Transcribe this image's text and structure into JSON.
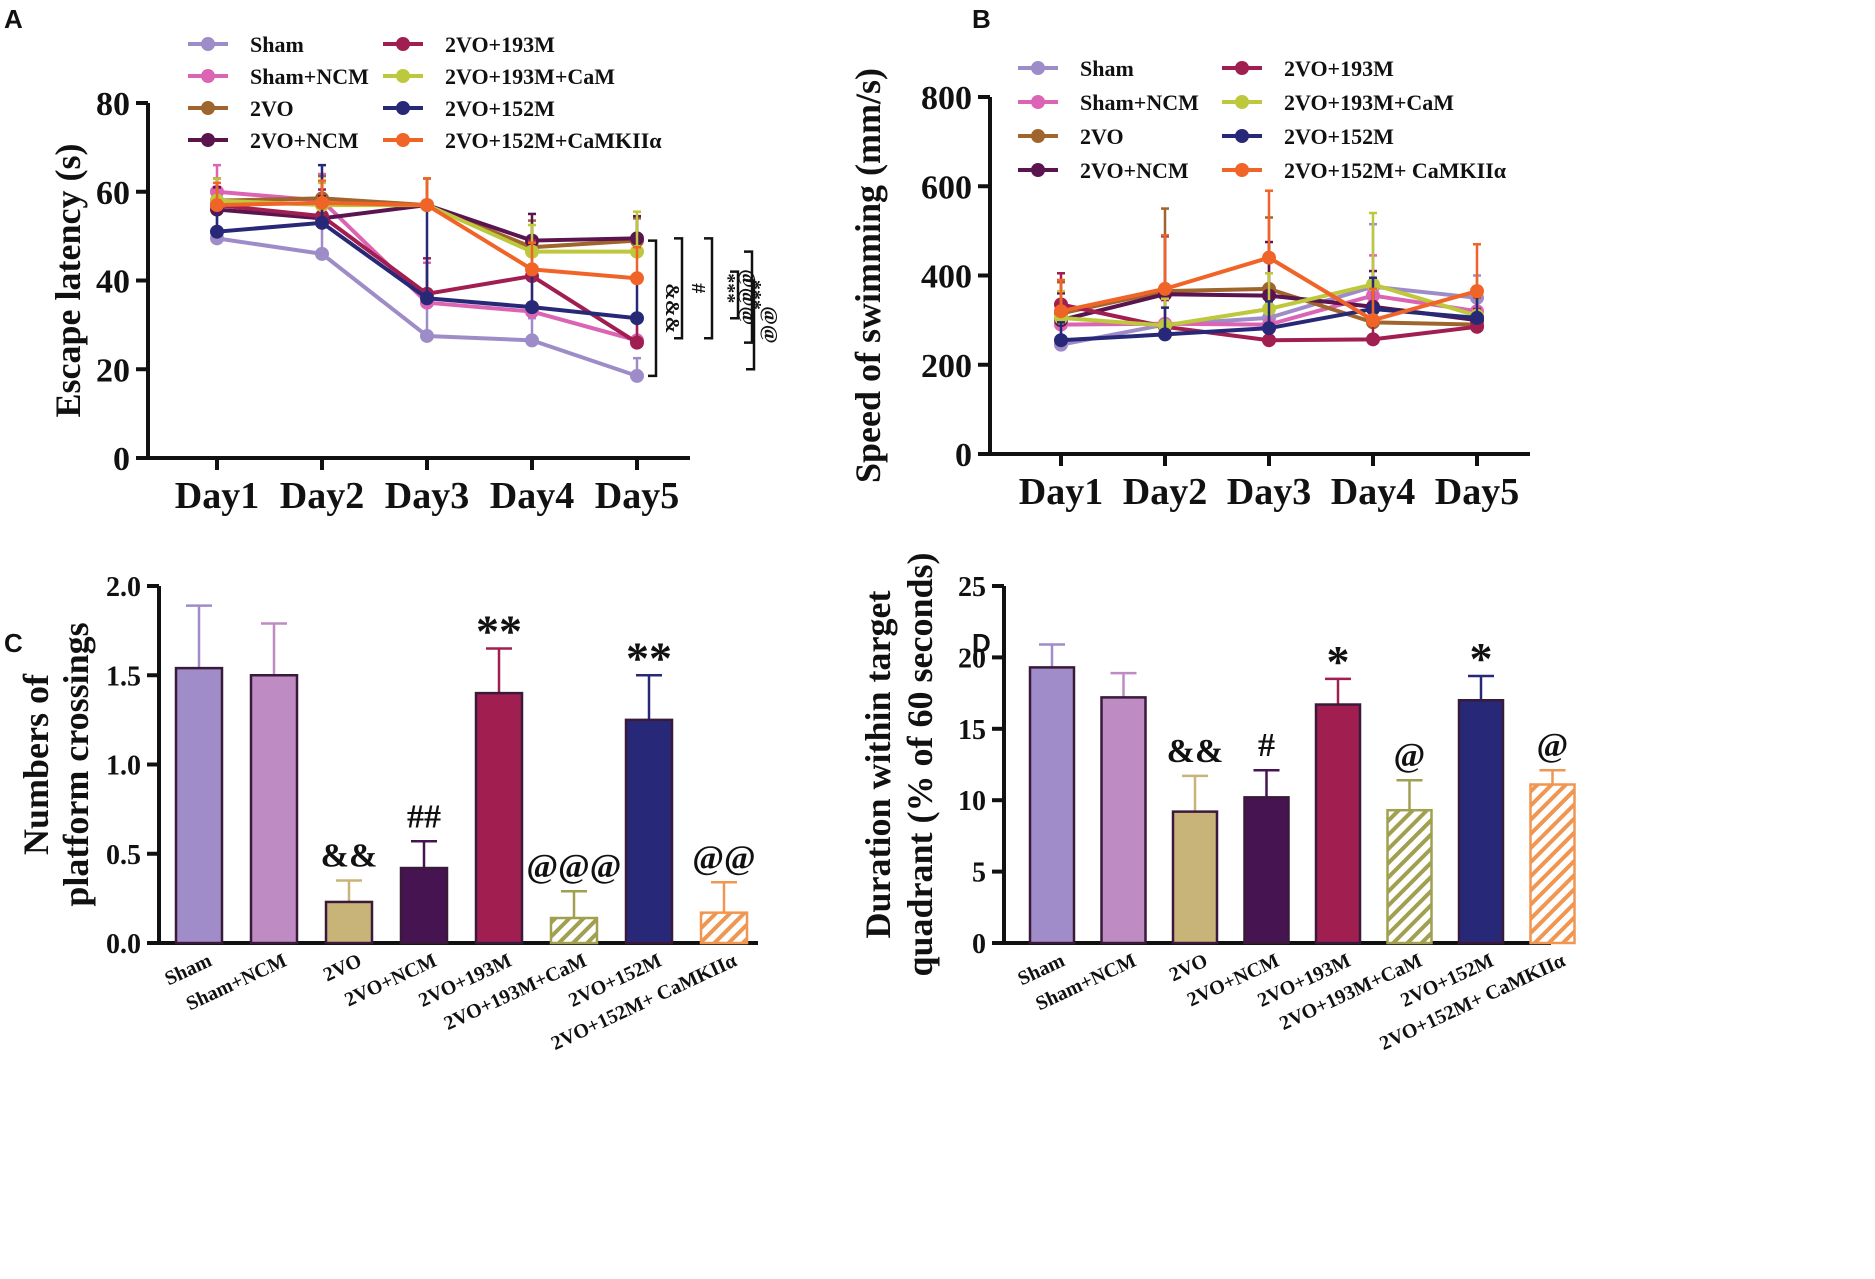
{
  "colors": {
    "Sham": "#9e8cc8",
    "Sham+NCM": "#dc64b4",
    "2VO": "#a0642d",
    "2VO+NCM": "#5a1450",
    "2VO+193M": "#a01e50",
    "2VO+193M+CaM": "#bec83c",
    "2VO+152M": "#282878",
    "2VO+152M+CaMKIIa": "#f06428"
  },
  "bar_colors": {
    "Sham": "#a08cc8",
    "Sham+NCM": "#be8cc3",
    "2VO": "#c8b478",
    "2VO+NCM": "#461450",
    "2VO+193M": "#a01e50",
    "2VO+193M+CaM": "#a0a050",
    "2VO+152M": "#282878",
    "2VO+152M+CaMKIIa": "#f09650"
  },
  "panels": {
    "A": "A",
    "B": "B",
    "C": "C",
    "D": "D"
  },
  "chart_data": [
    {
      "id": "A",
      "type": "line",
      "ylabel": "Escape latency (s)",
      "ylim": [
        0,
        80
      ],
      "yticks": [
        "0",
        "20",
        "40",
        "60",
        "80"
      ],
      "categories": [
        "Day1",
        "Day2",
        "Day3",
        "Day4",
        "Day5"
      ],
      "legend_col1": [
        "Sham",
        "Sham+NCM",
        "2VO",
        "2VO+NCM"
      ],
      "legend_col2": [
        "2VO+193M",
        "2VO+193M+CaM",
        "2VO+152M",
        "2VO+152M+CaMKIIα"
      ],
      "series": [
        {
          "name": "Sham",
          "key": "Sham",
          "values": [
            49.5,
            46,
            27.5,
            26.5,
            18.5
          ],
          "err": [
            7,
            8,
            8,
            5,
            4
          ]
        },
        {
          "name": "Sham+NCM",
          "key": "Sham+NCM",
          "values": [
            60,
            58,
            35,
            33,
            26.5
          ],
          "err": [
            6,
            6,
            9,
            8,
            6
          ]
        },
        {
          "name": "2VO",
          "key": "2VO",
          "values": [
            58,
            58.5,
            57,
            47.5,
            49
          ],
          "err": [
            5,
            5,
            6,
            6,
            5
          ]
        },
        {
          "name": "2VO+NCM",
          "key": "2VO+NCM",
          "values": [
            56,
            54,
            57,
            49,
            49.5
          ],
          "err": [
            5,
            5,
            6,
            6,
            5
          ]
        },
        {
          "name": "2VO+193M",
          "key": "2VO+193M",
          "values": [
            57,
            54.5,
            37,
            41,
            26
          ],
          "err": [
            6,
            6,
            8,
            8,
            6
          ]
        },
        {
          "name": "2VO+193M+CaM",
          "key": "2VO+193M+CaM",
          "values": [
            58,
            57,
            57,
            46.5,
            46.5
          ],
          "err": [
            5,
            5,
            6,
            6,
            9
          ]
        },
        {
          "name": "2VO+152M",
          "key": "2VO+152M",
          "values": [
            51,
            53,
            36,
            34,
            31.5
          ],
          "err": [
            6,
            13,
            20,
            8,
            10
          ]
        },
        {
          "name": "2VO+152M+CaMKIIα",
          "key": "2VO+152M+CaMKIIa",
          "values": [
            57,
            57.5,
            57,
            42.5,
            40.5
          ],
          "err": [
            5,
            5,
            6,
            6,
            7
          ]
        }
      ],
      "significance": [
        "&&&",
        "#",
        "***",
        "***",
        "@@@",
        "@@"
      ]
    },
    {
      "id": "B",
      "type": "line",
      "ylabel": "Speed of swimming (mm/s)",
      "ylim": [
        0,
        800
      ],
      "yticks": [
        "0",
        "200",
        "400",
        "600",
        "800"
      ],
      "categories": [
        "Day1",
        "Day2",
        "Day3",
        "Day4",
        "Day5"
      ],
      "legend_col1": [
        "Sham",
        "Sham+NCM",
        "2VO",
        "2VO+NCM"
      ],
      "legend_col2": [
        "2VO+193M",
        "2VO+193M+CaM",
        "2VO+152M",
        "2VO+152M+ CaMKIIα"
      ],
      "series": [
        {
          "name": "Sham",
          "key": "Sham",
          "values": [
            245,
            290,
            305,
            375,
            350
          ],
          "err": [
            40,
            60,
            100,
            140,
            50
          ]
        },
        {
          "name": "Sham+NCM",
          "key": "Sham+NCM",
          "values": [
            290,
            292,
            290,
            355,
            320
          ],
          "err": [
            40,
            60,
            80,
            90,
            50
          ]
        },
        {
          "name": "2VO",
          "key": "2VO",
          "values": [
            315,
            365,
            370,
            295,
            290
          ],
          "err": [
            70,
            185,
            160,
            80,
            60
          ]
        },
        {
          "name": "2VO+NCM",
          "key": "2VO+NCM",
          "values": [
            300,
            358,
            355,
            330,
            300
          ],
          "err": [
            60,
            130,
            120,
            80,
            60
          ]
        },
        {
          "name": "2VO+193M",
          "key": "2VO+193M",
          "values": [
            335,
            285,
            255,
            257,
            285
          ],
          "err": [
            70,
            60,
            60,
            60,
            40
          ]
        },
        {
          "name": "2VO+193M+CaM",
          "key": "2VO+193M+CaM",
          "values": [
            305,
            288,
            325,
            380,
            310
          ],
          "err": [
            60,
            60,
            80,
            160,
            60
          ]
        },
        {
          "name": "2VO+152M",
          "key": "2VO+152M",
          "values": [
            255,
            268,
            282,
            325,
            305
          ],
          "err": [
            40,
            60,
            60,
            70,
            50
          ]
        },
        {
          "name": "2VO+152M+ CaMKIIα",
          "key": "2VO+152M+CaMKIIa",
          "values": [
            320,
            370,
            440,
            300,
            365
          ],
          "err": [
            70,
            120,
            150,
            70,
            105
          ]
        }
      ]
    },
    {
      "id": "C",
      "type": "bar",
      "ylabel_line1": "Numbers of",
      "ylabel_line2": "platform crossings",
      "ylim": [
        0,
        2.0
      ],
      "yticks": [
        "0.0",
        "0.5",
        "1.0",
        "1.5",
        "2.0"
      ],
      "categories": [
        "Sham",
        "Sham+NCM",
        "2VO",
        "2VO+NCM",
        "2VO+193M",
        "2VO+193M+CaM",
        "2VO+152M",
        "2VO+152M+ CaMKIIα"
      ],
      "keys": [
        "Sham",
        "Sham+NCM",
        "2VO",
        "2VO+NCM",
        "2VO+193M",
        "2VO+193M+CaM",
        "2VO+152M",
        "2VO+152M+CaMKIIa"
      ],
      "values": [
        1.54,
        1.5,
        0.23,
        0.42,
        1.4,
        0.14,
        1.25,
        0.17
      ],
      "err": [
        0.35,
        0.29,
        0.12,
        0.15,
        0.25,
        0.15,
        0.25,
        0.17
      ],
      "hatched": [
        false,
        false,
        false,
        false,
        false,
        true,
        false,
        true
      ],
      "labels": [
        "",
        "",
        "&&",
        "##",
        "**",
        "@@@",
        "**",
        "@@"
      ]
    },
    {
      "id": "D",
      "type": "bar",
      "ylabel_line1": "Duration within target",
      "ylabel_line2": "quadrant (% of 60 seconds)",
      "ylim": [
        0,
        25
      ],
      "yticks": [
        "0",
        "5",
        "10",
        "15",
        "20",
        "25"
      ],
      "categories": [
        "Sham",
        "Sham+NCM",
        "2VO",
        "2VO+NCM",
        "2VO+193M",
        "2VO+193M+CaM",
        "2VO+152M",
        "2VO+152M+ CaMKIIα"
      ],
      "keys": [
        "Sham",
        "Sham+NCM",
        "2VO",
        "2VO+NCM",
        "2VO+193M",
        "2VO+193M+CaM",
        "2VO+152M",
        "2VO+152M+CaMKIIa"
      ],
      "values": [
        19.3,
        17.2,
        9.2,
        10.2,
        16.7,
        9.3,
        17.0,
        11.1
      ],
      "err": [
        1.6,
        1.7,
        2.5,
        1.9,
        1.8,
        2.1,
        1.7,
        1.0
      ],
      "hatched": [
        false,
        false,
        false,
        false,
        false,
        true,
        false,
        true
      ],
      "labels": [
        "",
        "",
        "&&",
        "#",
        "*",
        "@",
        "*",
        "@"
      ]
    }
  ]
}
